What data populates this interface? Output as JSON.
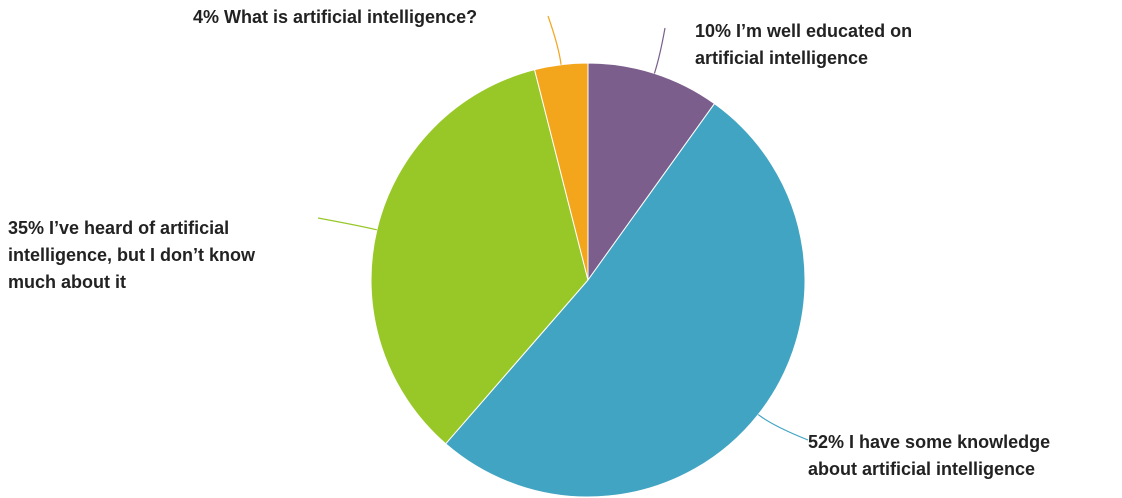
{
  "chart_data": {
    "type": "pie",
    "title": "",
    "slices": [
      {
        "label": [
          "10% I’m well educated on",
          "artificial intelligence"
        ],
        "value": 10,
        "color": "#7b5e8c"
      },
      {
        "label": [
          "52% I have some knowledge",
          "about artificial intelligence"
        ],
        "value": 52,
        "color": "#41a4c2"
      },
      {
        "label": [
          "35% I’ve heard of artificial",
          "intelligence, but I don’t know",
          "much about it"
        ],
        "value": 35,
        "color": "#98c828"
      },
      {
        "label": [
          "4% What is artificial intelligence?"
        ],
        "value": 4,
        "color": "#f3a51c"
      }
    ],
    "start_angle": "12 o'clock",
    "direction": "clockwise",
    "legend": "none (data labels with leader lines)"
  }
}
